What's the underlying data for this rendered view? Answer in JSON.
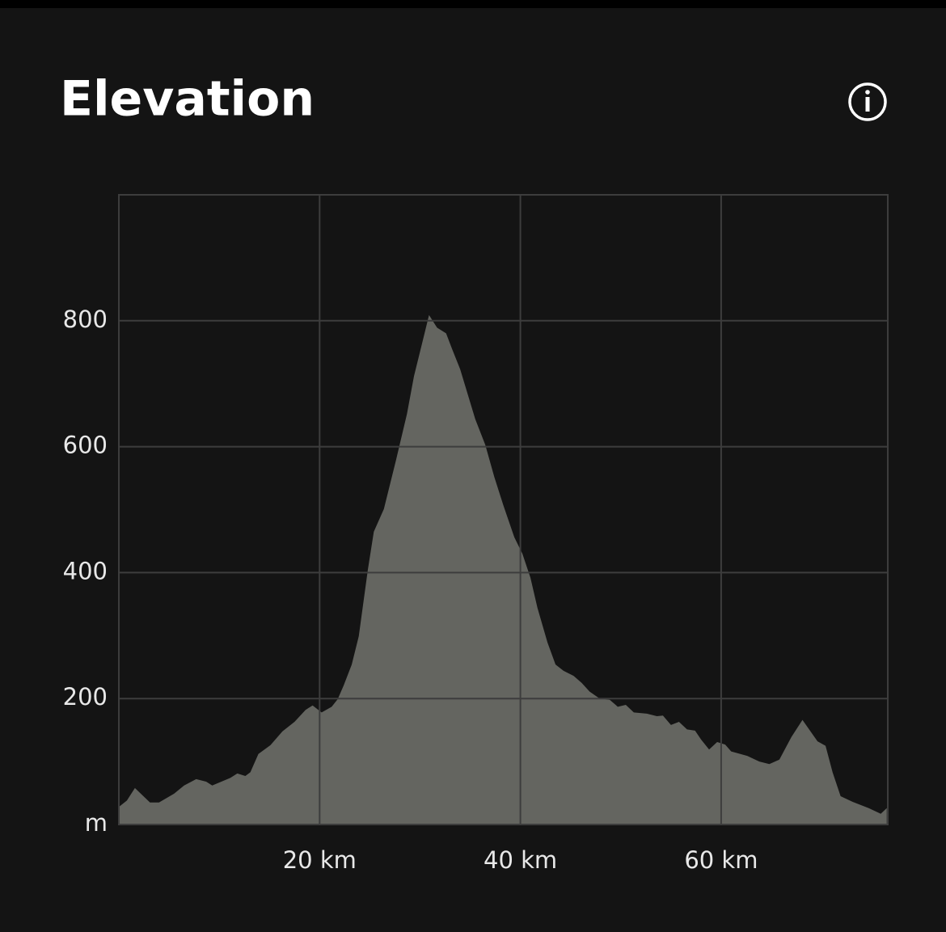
{
  "chart_data": {
    "type": "area",
    "title": "Elevation",
    "x": [
      0,
      0.8,
      1.6,
      3.1,
      4.0,
      5.5,
      6.5,
      7.7,
      8.7,
      9.3,
      11.1,
      11.8,
      12.6,
      13.1,
      13.9,
      15.1,
      16.3,
      17.5,
      18.6,
      19.3,
      20.2,
      21.2,
      21.8,
      22.4,
      23.2,
      23.9,
      24.8,
      25.4,
      26.4,
      27.6,
      28.7,
      29.4,
      30.3,
      30.9,
      31.7,
      32.6,
      33.2,
      34.0,
      35.5,
      36.5,
      37.4,
      38.3,
      39.4,
      40.2,
      41.0,
      41.7,
      42.7,
      43.5,
      44.3,
      45.3,
      46.1,
      46.9,
      47.9,
      48.9,
      49.7,
      50.5,
      51.3,
      52.6,
      53.6,
      54.2,
      55.0,
      55.8,
      56.6,
      57.4,
      58.0,
      58.8,
      59.6,
      60.4,
      61.0,
      62.6,
      63.8,
      64.8,
      65.8,
      67.0,
      68.1,
      69.6,
      70.4,
      71.1,
      71.9,
      73.1,
      74.7,
      75.9,
      76.5
    ],
    "values": [
      28,
      38,
      58,
      35,
      35,
      49,
      62,
      72,
      68,
      62,
      74,
      81,
      77,
      83,
      112,
      126,
      148,
      163,
      182,
      189,
      178,
      187,
      199,
      221,
      254,
      299,
      404,
      465,
      501,
      578,
      652,
      712,
      770,
      809,
      789,
      780,
      755,
      723,
      644,
      603,
      552,
      507,
      456,
      430,
      392,
      344,
      289,
      254,
      244,
      236,
      225,
      211,
      200,
      198,
      187,
      190,
      178,
      176,
      172,
      173,
      158,
      163,
      151,
      149,
      135,
      119,
      131,
      127,
      116,
      109,
      100,
      96,
      103,
      139,
      166,
      132,
      125,
      83,
      45,
      36,
      26,
      17,
      26
    ],
    "color": "#646560",
    "xlim": [
      0,
      76.6
    ],
    "xticks": [
      {
        "value": 20,
        "label": "20 km"
      },
      {
        "value": 40,
        "label": "40 km"
      },
      {
        "value": 60,
        "label": "60 km"
      }
    ],
    "ylim": [
      0,
      1000
    ],
    "yticks": [
      {
        "value": 0,
        "label": "m"
      },
      200,
      400,
      600,
      800
    ],
    "grid": true
  }
}
